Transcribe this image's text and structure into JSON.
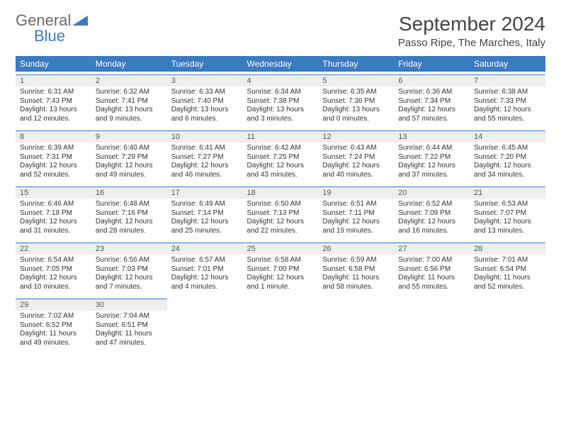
{
  "logo": {
    "textGray": "General",
    "textBlue": "Blue"
  },
  "title": "September 2024",
  "location": "Passo Ripe, The Marches, Italy",
  "colors": {
    "headerBar": "#3b7bbf",
    "dayNumBg": "#eeeeee",
    "textGray": "#6a6a6a",
    "textBlue": "#3b7bbf",
    "bodyText": "#333333"
  },
  "dayHeaders": [
    "Sunday",
    "Monday",
    "Tuesday",
    "Wednesday",
    "Thursday",
    "Friday",
    "Saturday"
  ],
  "weeks": [
    [
      {
        "n": "1",
        "sunrise": "Sunrise: 6:31 AM",
        "sunset": "Sunset: 7:43 PM",
        "day": "Daylight: 13 hours and 12 minutes."
      },
      {
        "n": "2",
        "sunrise": "Sunrise: 6:32 AM",
        "sunset": "Sunset: 7:41 PM",
        "day": "Daylight: 13 hours and 9 minutes."
      },
      {
        "n": "3",
        "sunrise": "Sunrise: 6:33 AM",
        "sunset": "Sunset: 7:40 PM",
        "day": "Daylight: 13 hours and 6 minutes."
      },
      {
        "n": "4",
        "sunrise": "Sunrise: 6:34 AM",
        "sunset": "Sunset: 7:38 PM",
        "day": "Daylight: 13 hours and 3 minutes."
      },
      {
        "n": "5",
        "sunrise": "Sunrise: 6:35 AM",
        "sunset": "Sunset: 7:36 PM",
        "day": "Daylight: 13 hours and 0 minutes."
      },
      {
        "n": "6",
        "sunrise": "Sunrise: 6:36 AM",
        "sunset": "Sunset: 7:34 PM",
        "day": "Daylight: 12 hours and 57 minutes."
      },
      {
        "n": "7",
        "sunrise": "Sunrise: 6:38 AM",
        "sunset": "Sunset: 7:33 PM",
        "day": "Daylight: 12 hours and 55 minutes."
      }
    ],
    [
      {
        "n": "8",
        "sunrise": "Sunrise: 6:39 AM",
        "sunset": "Sunset: 7:31 PM",
        "day": "Daylight: 12 hours and 52 minutes."
      },
      {
        "n": "9",
        "sunrise": "Sunrise: 6:40 AM",
        "sunset": "Sunset: 7:29 PM",
        "day": "Daylight: 12 hours and 49 minutes."
      },
      {
        "n": "10",
        "sunrise": "Sunrise: 6:41 AM",
        "sunset": "Sunset: 7:27 PM",
        "day": "Daylight: 12 hours and 46 minutes."
      },
      {
        "n": "11",
        "sunrise": "Sunrise: 6:42 AM",
        "sunset": "Sunset: 7:25 PM",
        "day": "Daylight: 12 hours and 43 minutes."
      },
      {
        "n": "12",
        "sunrise": "Sunrise: 6:43 AM",
        "sunset": "Sunset: 7:24 PM",
        "day": "Daylight: 12 hours and 40 minutes."
      },
      {
        "n": "13",
        "sunrise": "Sunrise: 6:44 AM",
        "sunset": "Sunset: 7:22 PM",
        "day": "Daylight: 12 hours and 37 minutes."
      },
      {
        "n": "14",
        "sunrise": "Sunrise: 6:45 AM",
        "sunset": "Sunset: 7:20 PM",
        "day": "Daylight: 12 hours and 34 minutes."
      }
    ],
    [
      {
        "n": "15",
        "sunrise": "Sunrise: 6:46 AM",
        "sunset": "Sunset: 7:18 PM",
        "day": "Daylight: 12 hours and 31 minutes."
      },
      {
        "n": "16",
        "sunrise": "Sunrise: 6:48 AM",
        "sunset": "Sunset: 7:16 PM",
        "day": "Daylight: 12 hours and 28 minutes."
      },
      {
        "n": "17",
        "sunrise": "Sunrise: 6:49 AM",
        "sunset": "Sunset: 7:14 PM",
        "day": "Daylight: 12 hours and 25 minutes."
      },
      {
        "n": "18",
        "sunrise": "Sunrise: 6:50 AM",
        "sunset": "Sunset: 7:13 PM",
        "day": "Daylight: 12 hours and 22 minutes."
      },
      {
        "n": "19",
        "sunrise": "Sunrise: 6:51 AM",
        "sunset": "Sunset: 7:11 PM",
        "day": "Daylight: 12 hours and 19 minutes."
      },
      {
        "n": "20",
        "sunrise": "Sunrise: 6:52 AM",
        "sunset": "Sunset: 7:09 PM",
        "day": "Daylight: 12 hours and 16 minutes."
      },
      {
        "n": "21",
        "sunrise": "Sunrise: 6:53 AM",
        "sunset": "Sunset: 7:07 PM",
        "day": "Daylight: 12 hours and 13 minutes."
      }
    ],
    [
      {
        "n": "22",
        "sunrise": "Sunrise: 6:54 AM",
        "sunset": "Sunset: 7:05 PM",
        "day": "Daylight: 12 hours and 10 minutes."
      },
      {
        "n": "23",
        "sunrise": "Sunrise: 6:56 AM",
        "sunset": "Sunset: 7:03 PM",
        "day": "Daylight: 12 hours and 7 minutes."
      },
      {
        "n": "24",
        "sunrise": "Sunrise: 6:57 AM",
        "sunset": "Sunset: 7:01 PM",
        "day": "Daylight: 12 hours and 4 minutes."
      },
      {
        "n": "25",
        "sunrise": "Sunrise: 6:58 AM",
        "sunset": "Sunset: 7:00 PM",
        "day": "Daylight: 12 hours and 1 minute."
      },
      {
        "n": "26",
        "sunrise": "Sunrise: 6:59 AM",
        "sunset": "Sunset: 6:58 PM",
        "day": "Daylight: 11 hours and 58 minutes."
      },
      {
        "n": "27",
        "sunrise": "Sunrise: 7:00 AM",
        "sunset": "Sunset: 6:56 PM",
        "day": "Daylight: 11 hours and 55 minutes."
      },
      {
        "n": "28",
        "sunrise": "Sunrise: 7:01 AM",
        "sunset": "Sunset: 6:54 PM",
        "day": "Daylight: 11 hours and 52 minutes."
      }
    ],
    [
      {
        "n": "29",
        "sunrise": "Sunrise: 7:02 AM",
        "sunset": "Sunset: 6:52 PM",
        "day": "Daylight: 11 hours and 49 minutes."
      },
      {
        "n": "30",
        "sunrise": "Sunrise: 7:04 AM",
        "sunset": "Sunset: 6:51 PM",
        "day": "Daylight: 11 hours and 47 minutes."
      },
      null,
      null,
      null,
      null,
      null
    ]
  ]
}
